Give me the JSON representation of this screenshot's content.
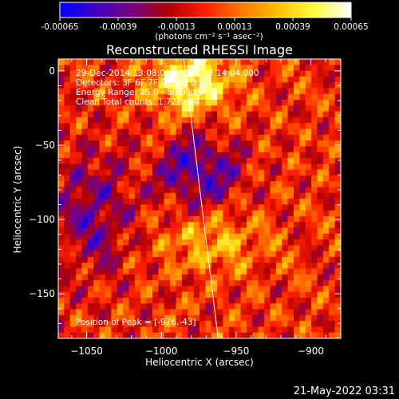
{
  "colorbar": {
    "min_label": "-0.00065",
    "tick_labels": [
      "-0.00065",
      "-0.00039",
      "-0.00013",
      "0.00013",
      "0.00039",
      "0.00065"
    ],
    "tick_values": [
      -0.00065,
      -0.00039,
      -0.00013,
      0.00013,
      0.00039,
      0.00065
    ],
    "range": [
      -0.00065,
      0.00065
    ],
    "units_label": "(photons cm⁻² s⁻¹ asec⁻²)",
    "colormap": [
      "#0000ff",
      "#4000c0",
      "#7a0080",
      "#b00000",
      "#ff2000",
      "#ff7a00",
      "#ffc000",
      "#ffff40",
      "#ffffff"
    ]
  },
  "chart_data": {
    "type": "heatmap",
    "title": "Reconstructed RHESSI Image",
    "xlabel": "Heliocentric X (arcsec)",
    "ylabel": "Heliocentric Y (arcsec)",
    "xlim": [
      -1069,
      -880
    ],
    "ylim": [
      -180,
      8
    ],
    "x_ticks": [
      -1050,
      -1000,
      -950,
      -900
    ],
    "y_ticks": [
      0,
      -50,
      -100,
      -150
    ],
    "x_tick_labels": [
      "−1050",
      "−1000",
      "−950",
      "−900"
    ],
    "y_tick_labels": [
      "0",
      "−50",
      "−100",
      "−150"
    ],
    "peak_position": [
      -976,
      -43
    ],
    "limb_line": [
      [
        -985,
        8
      ],
      [
        -962,
        -180
      ]
    ],
    "grid": false,
    "legend": "none",
    "annotations": [
      "29-Dec-2014 13:08:04.000 to 13:14:04.000",
      "Detectors: 3F 6F 7F 9F, Att 0",
      "Energy Range: 25.0 - 50.0 keV",
      "Clean     Total counts: 1.72e+04",
      "Position of Peak = [-976,-43]"
    ]
  },
  "footer": {
    "timestamp": "21-May-2022 03:31"
  }
}
